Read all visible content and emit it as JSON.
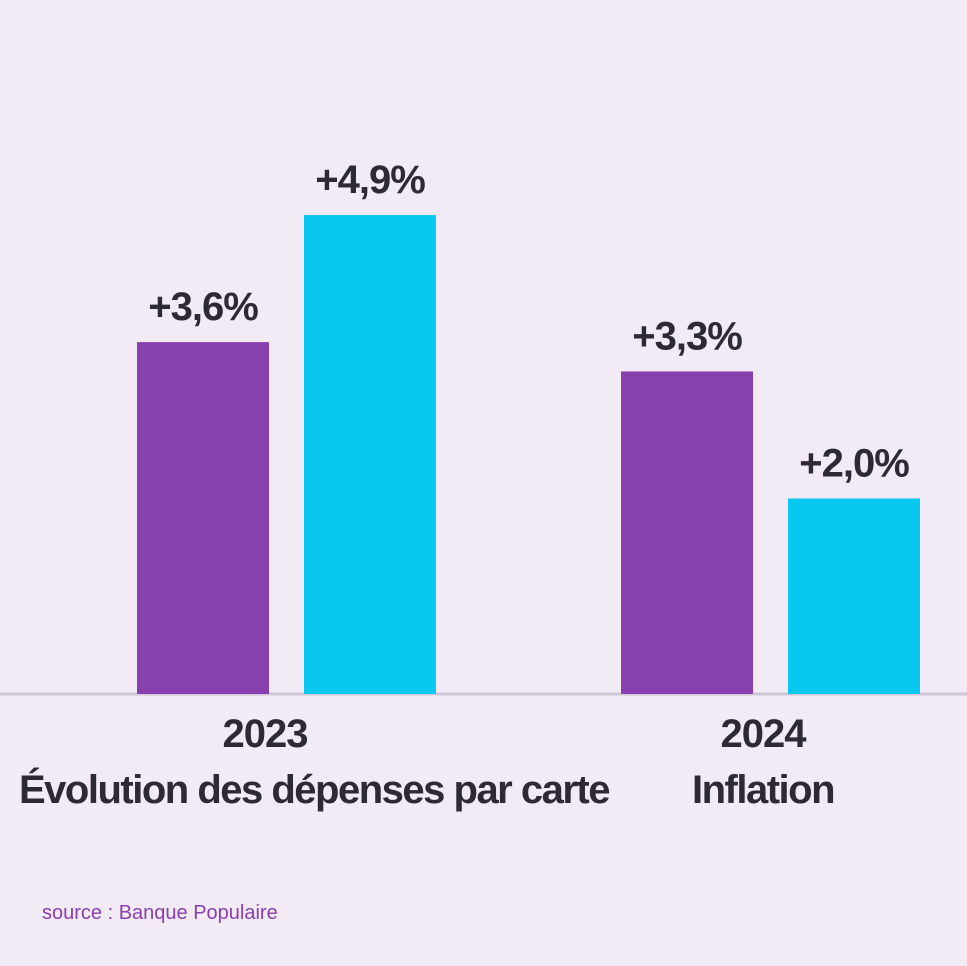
{
  "chart_data": {
    "type": "bar",
    "categories": [
      "2023",
      "2024"
    ],
    "series": [
      {
        "name": "Évolution des dépenses par carte",
        "values": [
          3.6,
          3.3
        ],
        "labels": [
          "+3,6%",
          "+3,3%"
        ],
        "color": "#8740ae"
      },
      {
        "name": "Inflation",
        "values": [
          4.9,
          2.0
        ],
        "labels": [
          "+4,9%",
          "+2,0%"
        ],
        "color": "#08c8f2"
      }
    ],
    "ylim": [
      0,
      7.1
    ],
    "grid": false,
    "baseline_color": "#cfc6d6"
  },
  "source": "source : Banque Populaire"
}
